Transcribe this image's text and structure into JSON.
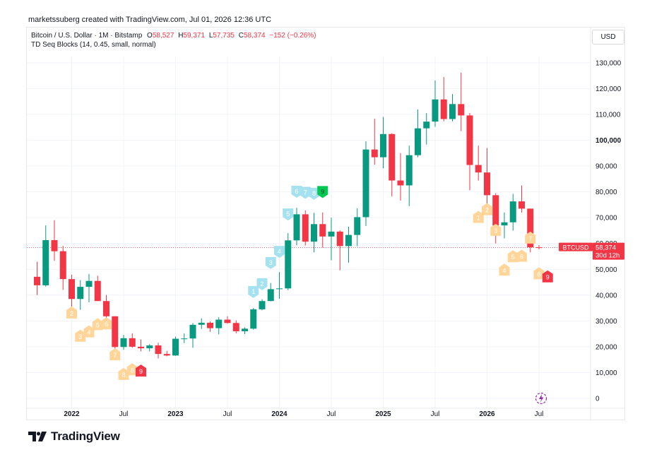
{
  "header": {
    "credit": "marketssuberg created with TradingView.com, Jul 01, 2026 12:36 UTC"
  },
  "legend": {
    "symbol": "Bitcoin / U.S. Dollar · 1M · Bitstamp",
    "o_label": "O",
    "o_value": "58,527",
    "h_label": "H",
    "h_value": "59,371",
    "l_label": "L",
    "l_value": "57,735",
    "c_label": "C",
    "c_value": "58,374",
    "change": "−152 (−0.26%)",
    "indicator": "TD Seq Blocks (14, 0.45, small, normal)"
  },
  "currency_button": "USD",
  "price_label": {
    "symbol": "BTCUSD",
    "price": "58,374",
    "countdown": "30d 12h"
  },
  "brand": {
    "name": "TradingView"
  },
  "colors": {
    "up": "#089981",
    "down": "#f23645",
    "setup_sell": "#ffd59a",
    "setup_buy": "#a5e1ee",
    "count9_buy": "#00c853",
    "count9_sell": "#f23645"
  },
  "chart_data": {
    "type": "candlestick",
    "title": "Bitcoin / U.S. Dollar · 1M · Bitstamp",
    "interval": "1M",
    "y_axis": {
      "range": [
        -5000,
        138000
      ],
      "ticks": [
        0,
        10000,
        20000,
        30000,
        40000,
        50000,
        60000,
        70000,
        80000,
        90000,
        100000,
        110000,
        120000,
        130000
      ],
      "tick_labels": [
        "0",
        "10,000",
        "20,000",
        "30,000",
        "40,000",
        "50,000",
        "60,000",
        "70,000",
        "80,000",
        "90,000",
        "100,000",
        "110,000",
        "120,000",
        "130,000"
      ],
      "scale": "linear",
      "position": "right"
    },
    "x_axis": {
      "labels": [
        "2022",
        "Jul",
        "2023",
        "Jul",
        "2024",
        "Jul",
        "2025",
        "Jul",
        "2026",
        "Jul"
      ],
      "label_dates": [
        "2022-01",
        "2022-07",
        "2023-01",
        "2023-07",
        "2024-01",
        "2024-07",
        "2025-01",
        "2025-07",
        "2026-01",
        "2026-07"
      ]
    },
    "grid": true,
    "current_price": 58374,
    "candles": [
      {
        "date": "2021-09",
        "o": 47100,
        "h": 52900,
        "l": 40000,
        "c": 43800
      },
      {
        "date": "2021-10",
        "o": 43800,
        "h": 67000,
        "l": 43300,
        "c": 61300
      },
      {
        "date": "2021-11",
        "o": 61300,
        "h": 69000,
        "l": 53300,
        "c": 57000
      },
      {
        "date": "2021-12",
        "o": 57000,
        "h": 59100,
        "l": 42000,
        "c": 46200
      },
      {
        "date": "2022-01",
        "o": 46200,
        "h": 47900,
        "l": 33000,
        "c": 38500
      },
      {
        "date": "2022-02",
        "o": 38500,
        "h": 45800,
        "l": 34300,
        "c": 43200
      },
      {
        "date": "2022-03",
        "o": 43200,
        "h": 48200,
        "l": 37200,
        "c": 45500
      },
      {
        "date": "2022-04",
        "o": 45500,
        "h": 47500,
        "l": 37700,
        "c": 37700
      },
      {
        "date": "2022-05",
        "o": 37700,
        "h": 40000,
        "l": 26700,
        "c": 31800
      },
      {
        "date": "2022-06",
        "o": 31800,
        "h": 31800,
        "l": 17600,
        "c": 19900
      },
      {
        "date": "2022-07",
        "o": 19900,
        "h": 24600,
        "l": 18800,
        "c": 23300
      },
      {
        "date": "2022-08",
        "o": 23300,
        "h": 25200,
        "l": 19600,
        "c": 20000
      },
      {
        "date": "2022-09",
        "o": 20000,
        "h": 22800,
        "l": 18200,
        "c": 19400
      },
      {
        "date": "2022-10",
        "o": 19400,
        "h": 21000,
        "l": 18200,
        "c": 20500
      },
      {
        "date": "2022-11",
        "o": 20500,
        "h": 21500,
        "l": 15500,
        "c": 17200
      },
      {
        "date": "2022-12",
        "o": 17200,
        "h": 18400,
        "l": 16300,
        "c": 16600
      },
      {
        "date": "2023-01",
        "o": 16600,
        "h": 23900,
        "l": 16500,
        "c": 23100
      },
      {
        "date": "2023-02",
        "o": 23100,
        "h": 25200,
        "l": 21400,
        "c": 23200
      },
      {
        "date": "2023-03",
        "o": 23200,
        "h": 29200,
        "l": 19600,
        "c": 28500
      },
      {
        "date": "2023-04",
        "o": 28500,
        "h": 31000,
        "l": 26900,
        "c": 29300
      },
      {
        "date": "2023-05",
        "o": 29300,
        "h": 29800,
        "l": 25800,
        "c": 27200
      },
      {
        "date": "2023-06",
        "o": 27200,
        "h": 31400,
        "l": 24800,
        "c": 30500
      },
      {
        "date": "2023-07",
        "o": 30500,
        "h": 31800,
        "l": 28900,
        "c": 29200
      },
      {
        "date": "2023-08",
        "o": 29200,
        "h": 30200,
        "l": 25200,
        "c": 26000
      },
      {
        "date": "2023-09",
        "o": 26000,
        "h": 27500,
        "l": 24900,
        "c": 27000
      },
      {
        "date": "2023-10",
        "o": 27000,
        "h": 35000,
        "l": 26600,
        "c": 34500
      },
      {
        "date": "2023-11",
        "o": 34500,
        "h": 38400,
        "l": 34100,
        "c": 37700
      },
      {
        "date": "2023-12",
        "o": 37700,
        "h": 44700,
        "l": 37600,
        "c": 42300
      },
      {
        "date": "2024-01",
        "o": 42300,
        "h": 48900,
        "l": 38600,
        "c": 42600
      },
      {
        "date": "2024-02",
        "o": 42600,
        "h": 64000,
        "l": 41900,
        "c": 61200
      },
      {
        "date": "2024-03",
        "o": 61200,
        "h": 73800,
        "l": 59300,
        "c": 71300
      },
      {
        "date": "2024-04",
        "o": 71300,
        "h": 72800,
        "l": 59200,
        "c": 60700
      },
      {
        "date": "2024-05",
        "o": 60700,
        "h": 71900,
        "l": 56600,
        "c": 67500
      },
      {
        "date": "2024-06",
        "o": 67500,
        "h": 72000,
        "l": 58400,
        "c": 62700
      },
      {
        "date": "2024-07",
        "o": 62700,
        "h": 70000,
        "l": 53500,
        "c": 64600
      },
      {
        "date": "2024-08",
        "o": 64600,
        "h": 65100,
        "l": 49600,
        "c": 59000
      },
      {
        "date": "2024-09",
        "o": 59000,
        "h": 66500,
        "l": 52600,
        "c": 63300
      },
      {
        "date": "2024-10",
        "o": 63300,
        "h": 73600,
        "l": 58900,
        "c": 70200
      },
      {
        "date": "2024-11",
        "o": 70200,
        "h": 99600,
        "l": 66800,
        "c": 96400
      },
      {
        "date": "2024-12",
        "o": 96400,
        "h": 108300,
        "l": 90500,
        "c": 93400
      },
      {
        "date": "2025-01",
        "o": 93400,
        "h": 109000,
        "l": 89200,
        "c": 102400
      },
      {
        "date": "2025-02",
        "o": 102400,
        "h": 102700,
        "l": 78200,
        "c": 84400
      },
      {
        "date": "2025-03",
        "o": 84400,
        "h": 95000,
        "l": 76600,
        "c": 82500
      },
      {
        "date": "2025-04",
        "o": 82500,
        "h": 97900,
        "l": 74500,
        "c": 94200
      },
      {
        "date": "2025-05",
        "o": 94200,
        "h": 111900,
        "l": 93400,
        "c": 104600
      },
      {
        "date": "2025-06",
        "o": 104600,
        "h": 110500,
        "l": 98300,
        "c": 107200
      },
      {
        "date": "2025-07",
        "o": 107200,
        "h": 123200,
        "l": 105200,
        "c": 115800
      },
      {
        "date": "2025-08",
        "o": 115800,
        "h": 124500,
        "l": 107300,
        "c": 108200
      },
      {
        "date": "2025-09",
        "o": 108200,
        "h": 117900,
        "l": 107300,
        "c": 114000
      },
      {
        "date": "2025-10",
        "o": 114000,
        "h": 126200,
        "l": 103500,
        "c": 109600
      },
      {
        "date": "2025-11",
        "o": 109600,
        "h": 110500,
        "l": 80600,
        "c": 90400
      },
      {
        "date": "2025-12",
        "o": 90400,
        "h": 97900,
        "l": 84400,
        "c": 87500
      },
      {
        "date": "2026-01",
        "o": 87500,
        "h": 97000,
        "l": 75000,
        "c": 78700
      },
      {
        "date": "2026-02",
        "o": 78700,
        "h": 79500,
        "l": 60000,
        "c": 67000
      },
      {
        "date": "2026-03",
        "o": 67000,
        "h": 72000,
        "l": 62000,
        "c": 68200
      },
      {
        "date": "2026-04",
        "o": 68200,
        "h": 79200,
        "l": 65000,
        "c": 76300
      },
      {
        "date": "2026-05",
        "o": 76300,
        "h": 82500,
        "l": 72000,
        "c": 73500
      },
      {
        "date": "2026-06",
        "o": 73500,
        "h": 73500,
        "l": 56600,
        "c": 58527
      },
      {
        "date": "2026-07",
        "o": 58527,
        "h": 59371,
        "l": 57735,
        "c": 58374
      }
    ],
    "td_markers": [
      {
        "date": "2022-01",
        "count": "2",
        "side": "sell",
        "level": 33000
      },
      {
        "date": "2022-02",
        "count": "3",
        "side": "sell",
        "level": 24000
      },
      {
        "date": "2022-03",
        "count": "4",
        "side": "sell",
        "level": 25700
      },
      {
        "date": "2022-04",
        "count": "5",
        "side": "sell",
        "level": 28500
      },
      {
        "date": "2022-05",
        "count": "6",
        "side": "sell",
        "level": 28800
      },
      {
        "date": "2022-06",
        "count": "7",
        "side": "sell",
        "level": 16800
      },
      {
        "date": "2022-07",
        "count": "8",
        "side": "sell",
        "level": 9200
      },
      {
        "date": "2022-08",
        "count": "8",
        "side": "sell",
        "level": 11000
      },
      {
        "date": "2022-09",
        "count": "9",
        "side": "sell",
        "level": 10500
      },
      {
        "date": "2023-10",
        "count": "1",
        "side": "buy",
        "level": 41500
      },
      {
        "date": "2023-11",
        "count": "2",
        "side": "buy",
        "level": 44500
      },
      {
        "date": "2023-12",
        "count": "3",
        "side": "buy",
        "level": 52700
      },
      {
        "date": "2024-01",
        "count": "4",
        "side": "buy",
        "level": 57000
      },
      {
        "date": "2024-02",
        "count": "5",
        "side": "buy",
        "level": 71500
      },
      {
        "date": "2024-03",
        "count": "6",
        "side": "buy",
        "level": 80300
      },
      {
        "date": "2024-04",
        "count": "7",
        "side": "buy",
        "level": 79900
      },
      {
        "date": "2024-05",
        "count": "8",
        "side": "buy",
        "level": 79500
      },
      {
        "date": "2024-06",
        "count": "9",
        "side": "buy",
        "level": 80200
      },
      {
        "date": "2025-12",
        "count": "1",
        "side": "sell",
        "level": 70000
      },
      {
        "date": "2026-01",
        "count": "2",
        "side": "sell",
        "level": 73000
      },
      {
        "date": "2026-02",
        "count": "3",
        "side": "sell",
        "level": 65000
      },
      {
        "date": "2026-03",
        "count": "4",
        "side": "sell",
        "level": 49600
      },
      {
        "date": "2026-04",
        "count": "5",
        "side": "sell",
        "level": 54800
      },
      {
        "date": "2026-05",
        "count": "6",
        "side": "sell",
        "level": 55000
      },
      {
        "date": "2026-06",
        "count": "7",
        "side": "sell",
        "level": 62000
      },
      {
        "date": "2026-07",
        "count": "8",
        "side": "sell",
        "level": 48200
      },
      {
        "date": "2026-08",
        "count": "9",
        "side": "sell",
        "level": 47000
      }
    ]
  }
}
